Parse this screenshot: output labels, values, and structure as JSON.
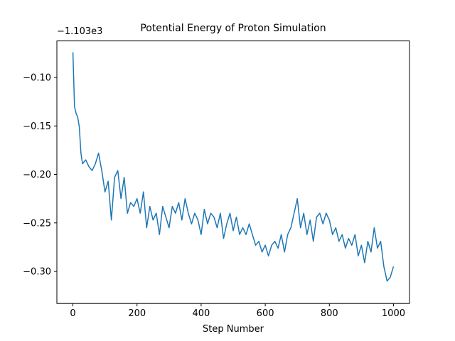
{
  "chart_data": {
    "type": "line",
    "title": "Potential Energy of Proton Simulation",
    "xlabel": "Step Number",
    "y_offset_label": "−1.103e3",
    "x": [
      0,
      5,
      10,
      15,
      20,
      25,
      30,
      40,
      50,
      60,
      70,
      80,
      90,
      100,
      110,
      120,
      130,
      140,
      150,
      160,
      170,
      180,
      190,
      200,
      210,
      220,
      230,
      240,
      250,
      260,
      270,
      280,
      290,
      300,
      310,
      320,
      330,
      340,
      350,
      360,
      370,
      380,
      390,
      400,
      410,
      420,
      430,
      440,
      450,
      460,
      470,
      480,
      490,
      500,
      510,
      520,
      530,
      540,
      550,
      560,
      570,
      580,
      590,
      600,
      610,
      620,
      630,
      640,
      650,
      660,
      670,
      680,
      690,
      700,
      710,
      720,
      730,
      740,
      750,
      760,
      770,
      780,
      790,
      800,
      810,
      820,
      830,
      840,
      850,
      860,
      870,
      880,
      890,
      900,
      910,
      920,
      930,
      940,
      950,
      960,
      970,
      980,
      990,
      1000
    ],
    "series": [
      {
        "color": "#1f77b4",
        "values": [
          -0.074,
          -0.13,
          -0.137,
          -0.141,
          -0.151,
          -0.178,
          -0.189,
          -0.185,
          -0.192,
          -0.196,
          -0.189,
          -0.178,
          -0.196,
          -0.218,
          -0.207,
          -0.247,
          -0.203,
          -0.196,
          -0.225,
          -0.203,
          -0.24,
          -0.229,
          -0.233,
          -0.225,
          -0.24,
          -0.218,
          -0.255,
          -0.233,
          -0.247,
          -0.24,
          -0.262,
          -0.233,
          -0.244,
          -0.255,
          -0.233,
          -0.24,
          -0.229,
          -0.247,
          -0.225,
          -0.24,
          -0.251,
          -0.24,
          -0.247,
          -0.262,
          -0.236,
          -0.251,
          -0.24,
          -0.244,
          -0.255,
          -0.24,
          -0.266,
          -0.251,
          -0.24,
          -0.258,
          -0.244,
          -0.262,
          -0.255,
          -0.262,
          -0.251,
          -0.262,
          -0.273,
          -0.269,
          -0.28,
          -0.273,
          -0.284,
          -0.273,
          -0.269,
          -0.276,
          -0.262,
          -0.28,
          -0.262,
          -0.255,
          -0.24,
          -0.225,
          -0.255,
          -0.24,
          -0.262,
          -0.247,
          -0.269,
          -0.244,
          -0.24,
          -0.251,
          -0.24,
          -0.247,
          -0.262,
          -0.255,
          -0.269,
          -0.262,
          -0.276,
          -0.266,
          -0.273,
          -0.262,
          -0.284,
          -0.273,
          -0.291,
          -0.269,
          -0.28,
          -0.255,
          -0.276,
          -0.269,
          -0.295,
          -0.31,
          -0.306,
          -0.295
        ]
      }
    ],
    "xlim": [
      -50,
      1050
    ],
    "xticks": [
      0,
      200,
      400,
      600,
      800,
      1000
    ],
    "ylim": [
      -0.3331,
      -0.0623
    ],
    "yticks": [
      {
        "value": -0.1,
        "label": "−0.10"
      },
      {
        "value": -0.15,
        "label": "−0.15"
      },
      {
        "value": -0.2,
        "label": "−0.20"
      },
      {
        "value": -0.25,
        "label": "−0.25"
      },
      {
        "value": -0.3,
        "label": "−0.30"
      }
    ]
  }
}
